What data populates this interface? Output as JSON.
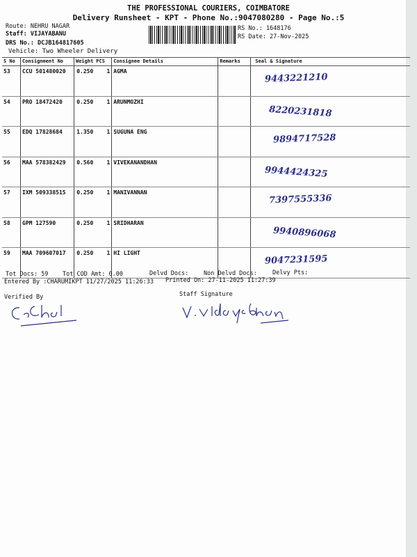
{
  "header": {
    "title": "THE PROFESSIONAL COURIERS, COIMBATORE",
    "subtitle": "Delivery Runsheet - KPT - Phone No.:9047080280 - Page No.:5",
    "route": "Route: NEHRU NAGAR",
    "staff": "Staff: VIJAYABANU",
    "drs": "DRS No.: DCJB164817605",
    "vehicle": "Vehicle: Two Wheeler Delivery",
    "rs_no": "RS No.: 1648176",
    "rs_date": "RS Date: 27-Nov-2025"
  },
  "table": {
    "columns": [
      "S No",
      "Consignment No",
      "Weight",
      "PCS",
      "Consignee Details",
      "Remarks",
      "Seal & Signature"
    ],
    "rows": [
      {
        "sno": "53",
        "cn": "CCU 501480020",
        "wt": "0.250",
        "pcs": "1",
        "name": "AGMA",
        "hw": "9443221210"
      },
      {
        "sno": "54",
        "cn": "PRO 18472420",
        "wt": "0.250",
        "pcs": "1",
        "name": "ARUNMOZHI",
        "hw": "8220231818"
      },
      {
        "sno": "55",
        "cn": "EDQ 17828684",
        "wt": "1.350",
        "pcs": "1",
        "name": "SUGUNA ENG",
        "hw": "9894717528"
      },
      {
        "sno": "56",
        "cn": "MAA 578382429",
        "wt": "0.560",
        "pcs": "1",
        "name": "VIVEKANANDHAN",
        "hw": "9944424325"
      },
      {
        "sno": "57",
        "cn": "IXM 509338515",
        "wt": "0.250",
        "pcs": "1",
        "name": "MANIVANNAN",
        "hw": "7397555336"
      },
      {
        "sno": "58",
        "cn": "GPM 127590",
        "wt": "0.250",
        "pcs": "1",
        "name": "SRIDHARAN",
        "hw": "9940896068"
      },
      {
        "sno": "59",
        "cn": "MAA 709607017",
        "wt": "0.250",
        "pcs": "1",
        "name": "HI LIGHT",
        "hw": "9047231595"
      }
    ]
  },
  "footer": {
    "tot_docs": "Tot Docs:  59",
    "tot_cod": "Tot COD Amt:    0.00",
    "delvd": "Delvd Docs:",
    "non_delvd": "Non Delvd Docs:",
    "delvy_pts": "Delvy Pts:",
    "entered": "Entered By :CHARUMIKPT 11/27/2025 11:26:33",
    "printed": "Printed On: 27-11-2025 11:27:39",
    "verified": "Verified By",
    "staff_sig": "Staff Signature"
  },
  "colors": {
    "ink": "#2b2f8a"
  }
}
